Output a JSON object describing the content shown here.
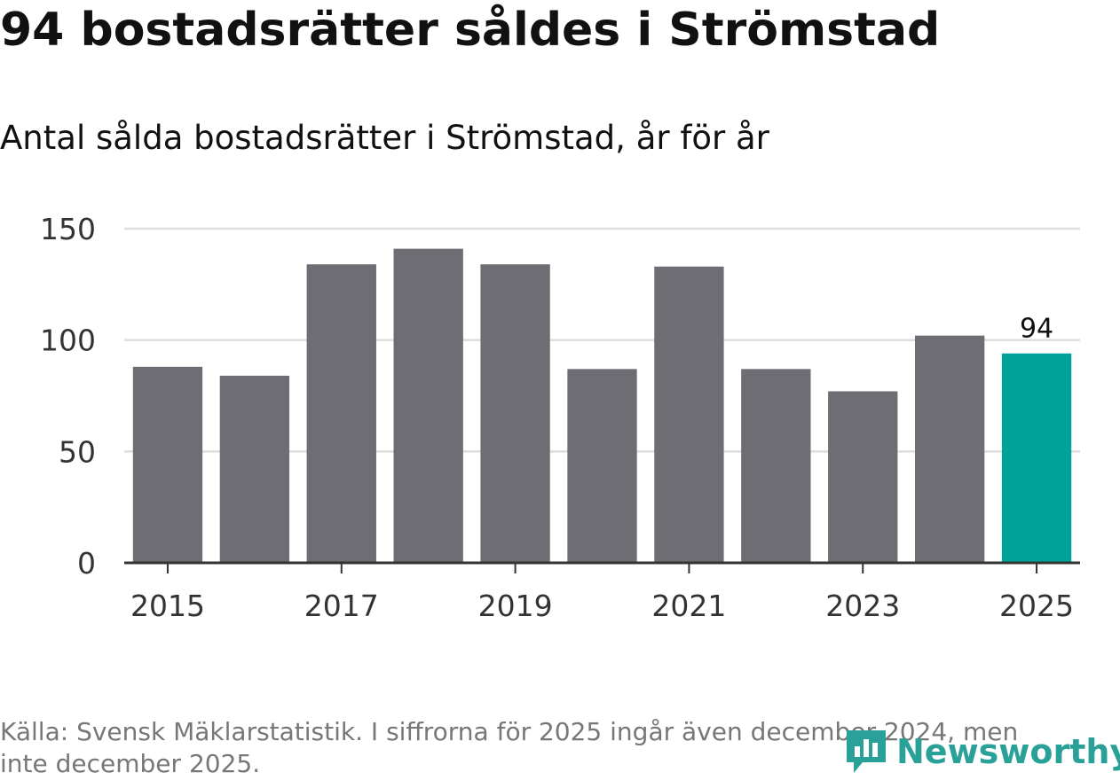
{
  "title": "94 bostadsrätter såldes i Strömstad",
  "subtitle": "Antal sålda bostadsrätter i Strömstad, år för år",
  "source": "Källa: Svensk Mäklarstatistik. I siffrorna för 2025 ingår även december 2024, men inte december 2025.",
  "logo_text": "Newsworthy",
  "colors": {
    "bar": "#6e6d74",
    "highlight": "#00a39a",
    "grid": "#dddddd",
    "axis": "#333333"
  },
  "chart_data": {
    "type": "bar",
    "title": "94 bostadsrätter såldes i Strömstad",
    "subtitle": "Antal sålda bostadsrätter i Strömstad, år för år",
    "categories": [
      "2015",
      "2016",
      "2017",
      "2018",
      "2019",
      "2020",
      "2021",
      "2022",
      "2023",
      "2024",
      "2025"
    ],
    "values": [
      88,
      84,
      134,
      141,
      134,
      87,
      133,
      87,
      77,
      102,
      94
    ],
    "highlight_index": 10,
    "highlight_label": "94",
    "xlabel": "",
    "ylabel": "",
    "ylim": [
      0,
      150
    ],
    "yticks": [
      "0",
      "50",
      "100",
      "150"
    ],
    "xticks": [
      "2015",
      "2017",
      "2019",
      "2021",
      "2023",
      "2025"
    ],
    "grid": true
  }
}
